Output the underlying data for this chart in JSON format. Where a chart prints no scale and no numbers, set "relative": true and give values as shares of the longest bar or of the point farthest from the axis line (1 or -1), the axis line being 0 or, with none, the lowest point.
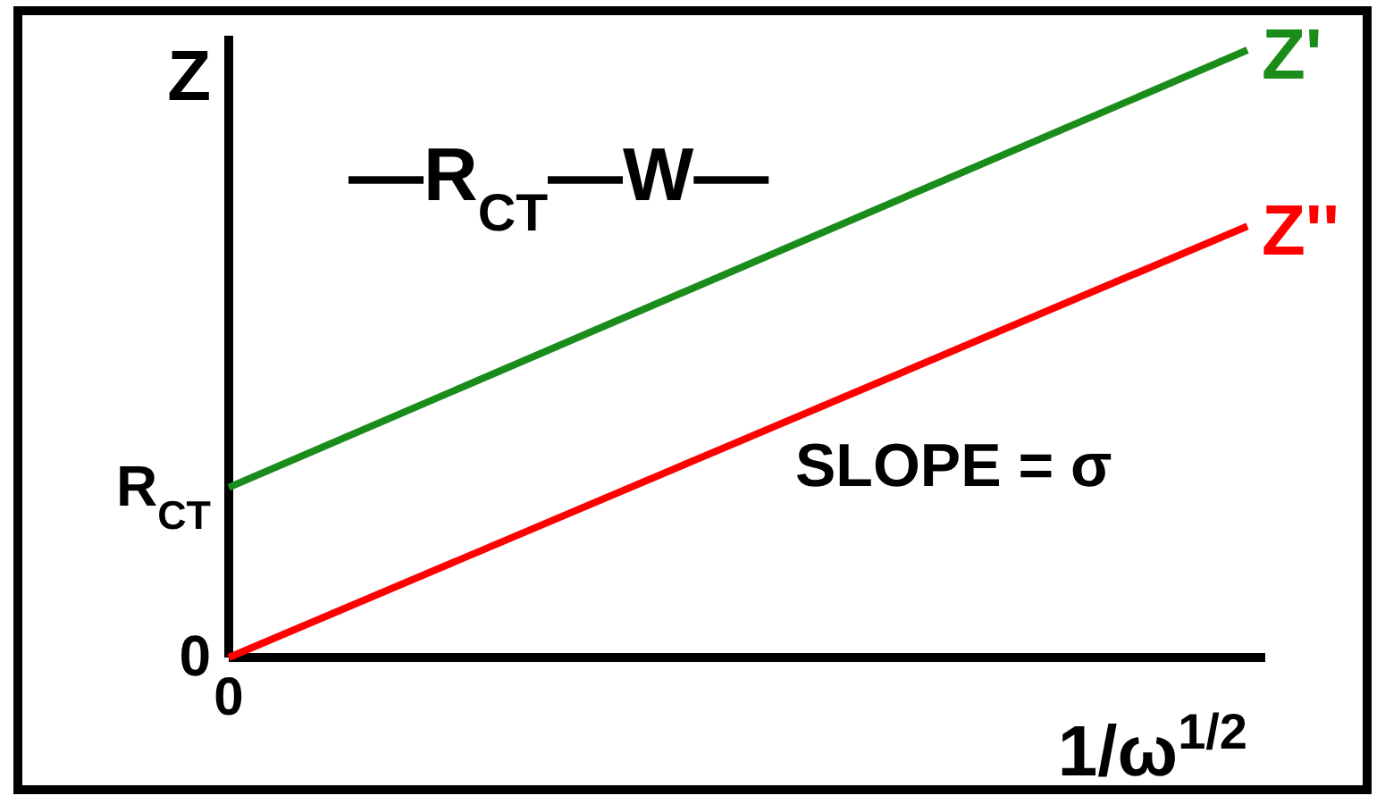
{
  "chart_data": {
    "type": "line",
    "relative": true,
    "ylabel": "Z",
    "xlabel": "1/ω$^{1/2}$",
    "categories": [
      null,
      null
    ],
    "series": [
      {
        "name": "Z'",
        "color": "#1a8c1a",
        "values": [
          0.28,
          1
        ]
      },
      {
        "name": "Z''",
        "color": "#ff0000",
        "values": [
          0,
          0.71
        ]
      }
    ],
    "annotations": [
      "R$_{CT}$",
      "0",
      "0",
      "—R$_{CT}$—W—",
      "SLOPE = σ"
    ],
    "grid": false,
    "marker": "none",
    "line_style": "solid"
  }
}
